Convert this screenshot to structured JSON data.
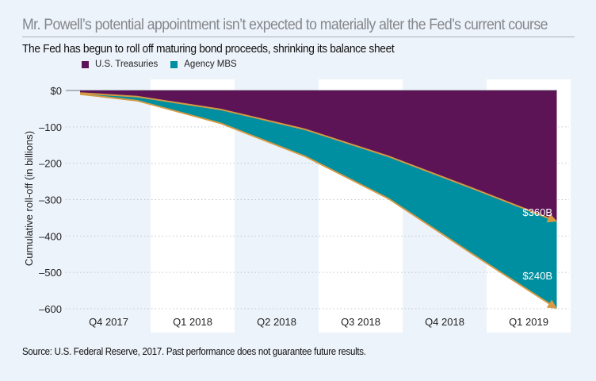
{
  "header": {
    "title": "Mr. Powell’s potential appointment isn’t expected to materially alter the Fed’s current course",
    "subtitle": "The Fed has begun to roll off maturing bond proceeds, shrinking its balance sheet"
  },
  "footer": {
    "source": "Source: U.S. Federal Reserve, 2017. Past performance does not guarantee future results."
  },
  "colors": {
    "treasuries": "#5d1456",
    "agency_mbs": "#008fa0",
    "line": "#d49a45",
    "stripe_light": "#edf3fa",
    "stripe_white": "#ffffff"
  },
  "chart_data": {
    "type": "area",
    "title": "The Fed has begun to roll off maturing bond proceeds, shrinking its balance sheet",
    "xlabel": "",
    "ylabel": "Cumulative roll-off (in billions)",
    "categories": [
      "Q4 2017",
      "Q1 2018",
      "Q2 2018",
      "Q3 2018",
      "Q4 2018",
      "Q1 2019"
    ],
    "x": [
      "start",
      "Q4 2017 end",
      "Q1 2018 end",
      "Q2 2018 end",
      "Q3 2018 end",
      "Q4 2018 end",
      "Q1 2019 end"
    ],
    "stacked": true,
    "series": [
      {
        "name": "U.S. Treasuries",
        "values": [
          -7,
          -17,
          -52,
          -107,
          -181,
          -268,
          -360
        ]
      },
      {
        "name": "Agency MBS",
        "values": [
          -3,
          -11,
          -38,
          -74,
          -116,
          -180,
          -240
        ]
      }
    ],
    "cumulative_total": [
      -10,
      -28,
      -90,
      -181,
      -297,
      -448,
      -600
    ],
    "yticks": [
      0,
      -100,
      -200,
      -300,
      -400,
      -500,
      -600
    ],
    "ytick_labels": [
      "$0",
      "–100",
      "–200",
      "–300",
      "–400",
      "–500",
      "–600"
    ],
    "ylim": [
      -600,
      0
    ],
    "grid": true,
    "legend": "top-left",
    "annotations": [
      {
        "text": "$360B",
        "series": "U.S. Treasuries"
      },
      {
        "text": "$240B",
        "series": "Agency MBS"
      }
    ]
  }
}
